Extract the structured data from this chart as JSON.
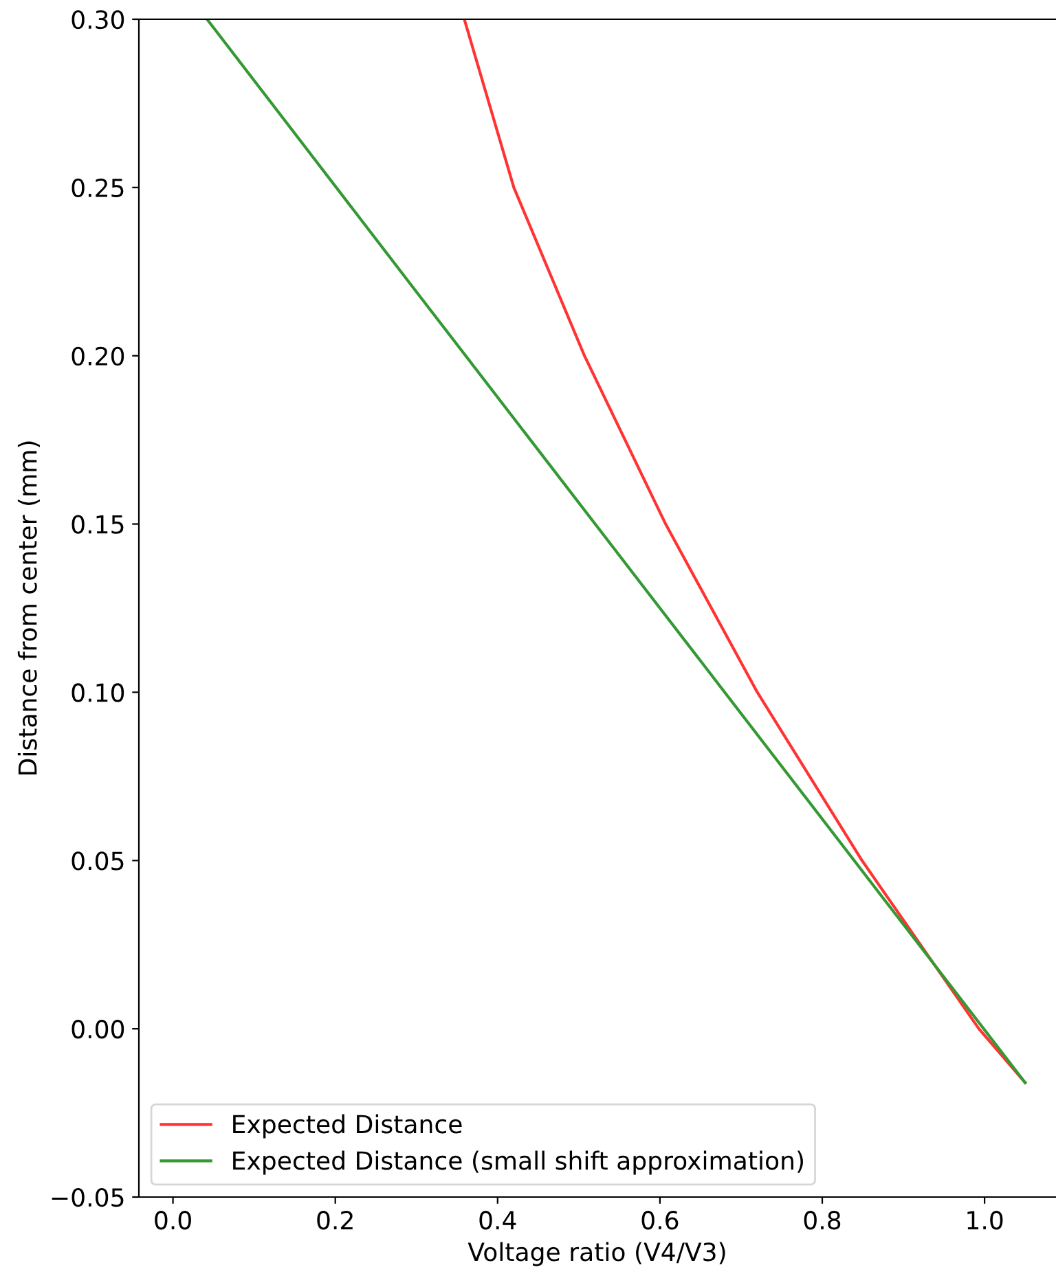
{
  "chart_data": {
    "type": "line",
    "xlabel": "Voltage ratio (V4/V3)",
    "ylabel": "Distance from center (mm)",
    "xlim": [
      -0.042,
      1.088
    ],
    "ylim": [
      -0.05,
      0.3
    ],
    "xticks": [
      {
        "value": 0.0,
        "label": "0.0"
      },
      {
        "value": 0.2,
        "label": "0.2"
      },
      {
        "value": 0.4,
        "label": "0.4"
      },
      {
        "value": 0.6,
        "label": "0.6"
      },
      {
        "value": 0.8,
        "label": "0.8"
      },
      {
        "value": 1.0,
        "label": "1.0"
      }
    ],
    "yticks": [
      {
        "value": -0.05,
        "label": "−0.05"
      },
      {
        "value": 0.0,
        "label": "0.00"
      },
      {
        "value": 0.05,
        "label": "0.05"
      },
      {
        "value": 0.1,
        "label": "0.10"
      },
      {
        "value": 0.15,
        "label": "0.15"
      },
      {
        "value": 0.2,
        "label": "0.20"
      },
      {
        "value": 0.25,
        "label": "0.25"
      },
      {
        "value": 0.3,
        "label": "0.30"
      }
    ],
    "legend": "bottom left",
    "grid": false,
    "marker": "none",
    "line_style": "solid",
    "series": [
      {
        "name": "Expected Distance",
        "color": "#ff3333",
        "x": [
          0.359,
          0.42,
          0.507,
          0.607,
          0.72,
          0.849,
          0.993,
          1.05
        ],
        "values": [
          0.3,
          0.25,
          0.2,
          0.15,
          0.1,
          0.05,
          0.0,
          -0.016
        ]
      },
      {
        "name": "Expected Distance (small shift approximation)",
        "color": "#339933",
        "x": [
          0.042,
          0.3,
          0.6,
          0.9,
          1.05
        ],
        "values": [
          0.3,
          0.219,
          0.125,
          0.031,
          -0.016
        ]
      }
    ]
  }
}
